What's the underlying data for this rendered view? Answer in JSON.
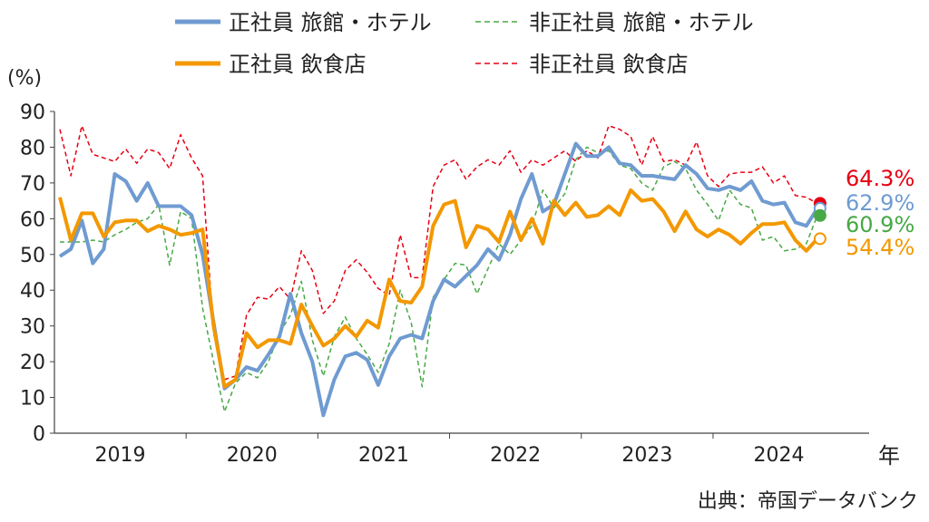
{
  "chart_data": {
    "type": "line",
    "y_unit_label": "(%)",
    "x_unit_label": "年",
    "source": "出典：帝国データバンク",
    "ylim": [
      0,
      90
    ],
    "y_ticks": [
      0,
      10,
      20,
      30,
      40,
      50,
      60,
      70,
      80,
      90
    ],
    "x_year_labels": [
      "2019",
      "2020",
      "2021",
      "2022",
      "2023",
      "2024"
    ],
    "x": [
      "2019-01",
      "2019-02",
      "2019-03",
      "2019-04",
      "2019-05",
      "2019-06",
      "2019-07",
      "2019-08",
      "2019-09",
      "2019-10",
      "2019-11",
      "2019-12",
      "2020-01",
      "2020-02",
      "2020-03",
      "2020-04",
      "2020-05",
      "2020-06",
      "2020-07",
      "2020-08",
      "2020-09",
      "2020-10",
      "2020-11",
      "2020-12",
      "2021-01",
      "2021-02",
      "2021-03",
      "2021-04",
      "2021-05",
      "2021-06",
      "2021-07",
      "2021-08",
      "2021-09",
      "2021-10",
      "2021-11",
      "2021-12",
      "2022-01",
      "2022-02",
      "2022-03",
      "2022-04",
      "2022-05",
      "2022-06",
      "2022-07",
      "2022-08",
      "2022-09",
      "2022-10",
      "2022-11",
      "2022-12",
      "2023-01",
      "2023-02",
      "2023-03",
      "2023-04",
      "2023-05",
      "2023-06",
      "2023-07",
      "2023-08",
      "2023-09",
      "2023-10",
      "2023-11",
      "2023-12",
      "2024-01",
      "2024-02",
      "2024-03",
      "2024-04",
      "2024-05",
      "2024-06",
      "2024-07",
      "2024-08",
      "2024-09",
      "2024-10"
    ],
    "series": [
      {
        "name": "正社員 旅館・ホテル",
        "color": "#6f9bd1",
        "style": "solid-thick",
        "values": [
          49.5,
          51.5,
          59.5,
          47.5,
          51.5,
          72.5,
          70.5,
          65,
          70,
          63.5,
          63.5,
          63.5,
          61,
          50,
          31,
          12.5,
          15,
          18.5,
          17.5,
          22,
          27,
          39,
          28,
          20,
          5,
          15,
          21.5,
          22.5,
          20.5,
          13.5,
          21.5,
          26.5,
          27.5,
          26.5,
          37,
          43,
          41,
          44,
          47,
          51.5,
          48.5,
          55.5,
          65.5,
          72.5,
          62,
          64,
          72.5,
          81,
          77.5,
          77.5,
          80,
          75.5,
          75,
          72,
          72,
          71.5,
          71,
          75,
          72.5,
          68.5,
          68,
          69,
          68,
          70.5,
          65,
          64,
          64.5,
          59,
          58,
          62.9
        ]
      },
      {
        "name": "非正社員 旅館・ホテル",
        "color": "#48a845",
        "style": "dashed",
        "values": [
          53.5,
          53.5,
          53.5,
          54,
          53.5,
          55.5,
          57,
          59,
          60,
          64,
          47,
          62,
          60,
          35,
          20,
          6,
          14,
          17,
          15.5,
          20,
          28,
          33,
          42.5,
          26,
          16,
          27,
          32.5,
          26.5,
          22,
          17,
          25,
          40,
          31,
          13,
          38,
          43,
          47.5,
          47,
          39,
          46,
          53,
          50,
          54,
          58,
          68,
          63,
          67,
          76.5,
          80,
          78.5,
          79,
          75,
          74,
          70,
          68,
          74.5,
          76,
          74,
          68,
          64,
          59.5,
          68,
          64,
          63,
          54,
          55,
          51,
          51.5,
          53,
          60.9
        ]
      },
      {
        "name": "正社員 飲食店",
        "color": "#f39800",
        "style": "solid-thick",
        "values": [
          66,
          54,
          61.5,
          61.5,
          55,
          59,
          59.5,
          59.5,
          56.5,
          58,
          57,
          55.5,
          56,
          57,
          30,
          13,
          15,
          28,
          24,
          26,
          26,
          25,
          36,
          30,
          24.5,
          26.5,
          30,
          27,
          31.5,
          29.5,
          43,
          37,
          36.5,
          41,
          58,
          64,
          65,
          52,
          58,
          57,
          53.5,
          62,
          54,
          60,
          53,
          65,
          61,
          64.5,
          60.5,
          61,
          63.5,
          61,
          68,
          65,
          65.5,
          62,
          56.5,
          62,
          57,
          55,
          57,
          55.5,
          53,
          56,
          58.5,
          58.5,
          59,
          54,
          51,
          54.4
        ]
      },
      {
        "name": "非正社員 飲食店",
        "color": "#e60012",
        "style": "dashed",
        "values": [
          85,
          72,
          86,
          78,
          77,
          76,
          79.5,
          75.5,
          79.5,
          78.5,
          74,
          83.5,
          77,
          72,
          28,
          15,
          16,
          33,
          38,
          37.5,
          41,
          37.5,
          51,
          45.5,
          33.5,
          37,
          45.5,
          48.5,
          45,
          40.5,
          38.5,
          55.5,
          43.5,
          43.5,
          69,
          75,
          76.5,
          71,
          74.5,
          76.5,
          75,
          79,
          73,
          76.5,
          75,
          77,
          79,
          76,
          79,
          77,
          86,
          85,
          83,
          75,
          83,
          76,
          76.5,
          75,
          81.5,
          72,
          69,
          72.5,
          73,
          73,
          74.5,
          70,
          72,
          66.5,
          66,
          64.3
        ]
      }
    ],
    "end_labels": [
      {
        "text": "64.3%",
        "color": "#e60012"
      },
      {
        "text": "62.9%",
        "color": "#6f9bd1"
      },
      {
        "text": "60.9%",
        "color": "#48a845"
      },
      {
        "text": "54.4%",
        "color": "#f39800"
      }
    ]
  }
}
